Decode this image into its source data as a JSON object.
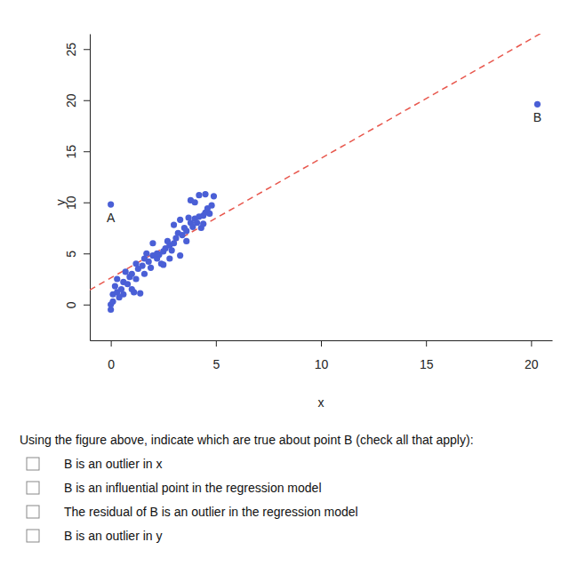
{
  "chart_data": {
    "type": "scatter",
    "x_label": "x",
    "y_label": "y",
    "xlim": [
      -1,
      21
    ],
    "xticks": [
      0,
      5,
      10,
      15,
      20
    ],
    "ylim": [
      -3.5,
      26.5
    ],
    "yticks": [
      0,
      5,
      10,
      15,
      20,
      25
    ],
    "color": "#4a5fd6",
    "marker": "circle",
    "x": [
      0,
      0,
      0.1,
      0.1,
      0.3,
      0.2,
      0.5,
      0.6,
      0.3,
      0.8,
      0.9,
      1.0,
      0.7,
      1.2,
      1.1,
      1.4,
      1.3,
      1.5,
      1.6,
      1.8,
      2.0,
      1.7,
      2.2,
      2.4,
      2.5,
      2.6,
      2.3,
      2.8,
      2.7,
      3.0,
      3.1,
      2.9,
      3.2,
      3.4,
      3.5,
      3.3,
      3.6,
      3.8,
      3.9,
      4.0,
      4.1,
      4.2,
      3.7,
      4.4,
      4.5,
      4.3,
      4.6,
      4.8,
      4.7,
      4.2,
      4.5,
      4.9,
      3.8,
      4.0,
      2.0,
      2.2,
      1.6,
      1.0,
      0.4,
      2.5,
      3.0,
      3.3,
      4.4,
      1.9,
      1.2,
      0.6,
      2.8,
      3.6
    ],
    "values": [
      -0.5,
      0,
      0.3,
      1.0,
      1.2,
      1.8,
      1.5,
      2.2,
      2.5,
      2.0,
      2.7,
      3.0,
      3.2,
      2.5,
      1.2,
      1.1,
      3.5,
      3.8,
      4.5,
      4.2,
      4.8,
      5.0,
      4.5,
      4.0,
      5.2,
      5.5,
      4.9,
      5.8,
      6.2,
      6.0,
      6.5,
      5.3,
      7.0,
      6.8,
      7.5,
      4.8,
      7.2,
      8.0,
      7.6,
      8.4,
      8.0,
      8.6,
      8.5,
      8.7,
      9.0,
      7.5,
      9.4,
      9.7,
      8.9,
      10.7,
      10.8,
      10.6,
      10.2,
      10.0,
      6.0,
      5.0,
      3.0,
      1.5,
      0.7,
      3.9,
      7.8,
      8.3,
      7.9,
      3.6,
      4.0,
      1.0,
      4.5,
      6.2
    ],
    "points": [
      {
        "label": "A",
        "x": 0,
        "y": 9.8
      },
      {
        "label": "B",
        "x": 20.3,
        "y": 19.6
      }
    ],
    "regression_line": {
      "intercept": 2.6,
      "slope": 1.17,
      "color": "#e8574d",
      "line_style": "dashed"
    }
  },
  "question": "Using the figure above, indicate which are true about point B (check all that apply):",
  "options": [
    "B is an outlier in x",
    "B is an influential point in the regression model",
    "The residual of B is an outlier in the regression model",
    "B is an outlier in y"
  ]
}
